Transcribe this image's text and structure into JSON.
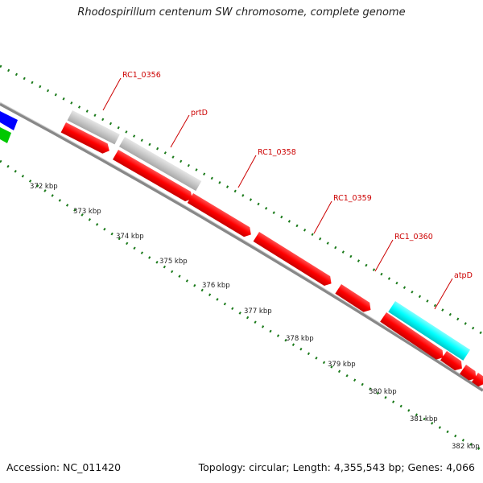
{
  "title": "Rhodospirillum centenum SW chromosome, complete genome",
  "footer": {
    "accession_label": "Accession: NC_011420",
    "summary": "Topology: circular; Length: 4,355,543 bp; Genes: 4,066"
  },
  "colors": {
    "cds": "#ff0000",
    "rna": "#c8c8c8",
    "highlight": "#00ffff",
    "blue_feature": "#0000ff",
    "green_feature": "#00c800",
    "tick": "#1a7a1a",
    "backbone": "#8a8a8a"
  },
  "kbp_ticks": [
    "372 kbp",
    "373 kbp",
    "374 kbp",
    "375 kbp",
    "376 kbp",
    "377 kbp",
    "378 kbp",
    "379 kbp",
    "380 kbp",
    "381 kbp",
    "382 kbp"
  ],
  "gene_labels": [
    "RC1_0356",
    "prtD",
    "RC1_0358",
    "RC1_0359",
    "RC1_0360",
    "atpD"
  ]
}
